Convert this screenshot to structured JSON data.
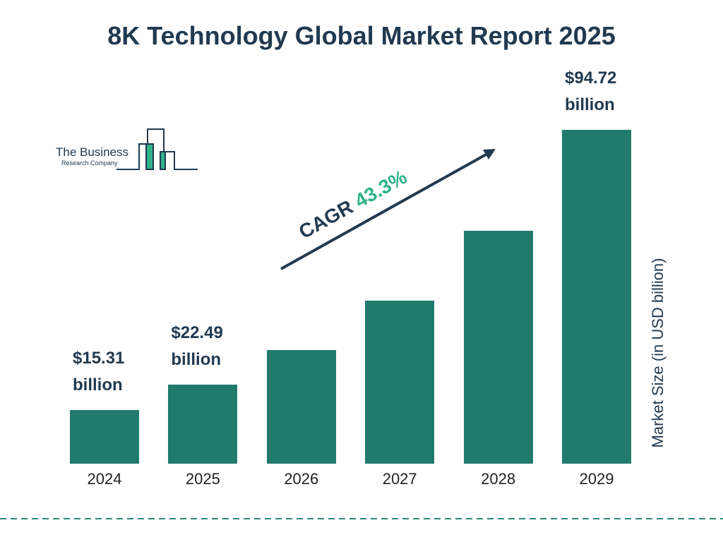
{
  "chart_data": {
    "type": "bar",
    "title": "8K Technology Global Market Report 2025",
    "categories": [
      "2024",
      "2025",
      "2026",
      "2027",
      "2028",
      "2029"
    ],
    "values": [
      15.31,
      22.49,
      32.23,
      46.18,
      66.18,
      94.72
    ],
    "value_labels": [
      "$15.31 billion",
      "$22.49 billion",
      null,
      null,
      null,
      "$94.72 billion"
    ],
    "color": "#217b6c",
    "y_axis_label": "Market Size (in USD billion)",
    "annotation": {
      "label": "CAGR",
      "value": "43.3%"
    },
    "logo": {
      "line1": "The Business",
      "line2": "Research Company"
    }
  }
}
